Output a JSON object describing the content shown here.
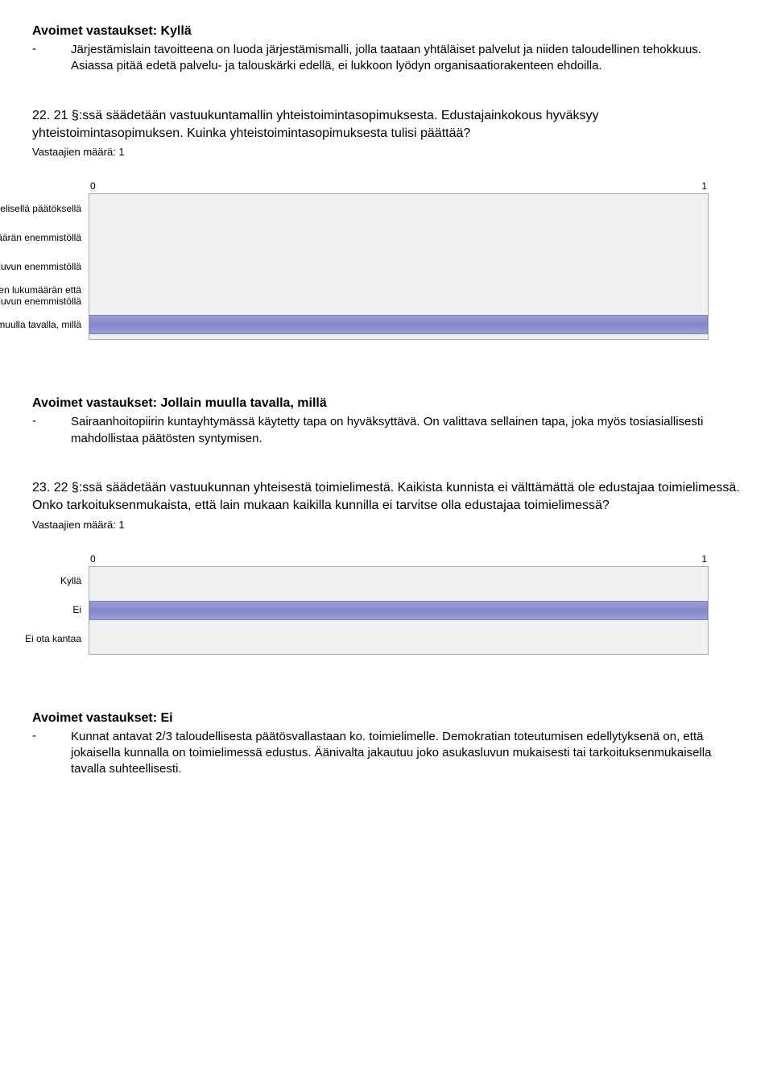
{
  "section1": {
    "heading": "Avoimet vastaukset: Kyllä",
    "dash": "-",
    "text": "Järjestämislain tavoitteena on luoda järjestämismalli, jolla taataan yhtäläiset palvelut ja niiden taloudellinen tehokkuus. Asiassa pitää edetä palvelu- ja talouskärki edellä, ei lukkoon lyödyn organisaatiorakenteen ehdoilla."
  },
  "q22": {
    "title": "22. 21 §:ssä säädetään vastuukuntamallin yhteistoimintasopimuksesta. Edustajainkokous hyväksyy yhteistoimintasopimuksen. Kuinka yhteistoimintasopimuksesta tulisi päättää?",
    "meta": "Vastaajien määrä: 1",
    "axis_min": "0",
    "axis_max": "1",
    "rows": [
      {
        "label": "Kuntien yksimielisellä päätöksellä",
        "value": 0
      },
      {
        "label": "Kuntien lukumäärän enemmistöllä",
        "value": 0
      },
      {
        "label": "Asukasluvun enemmistöllä",
        "value": 0
      },
      {
        "label": "Sekä kuntien lukumäärän että\nasukasluvun enemmistöllä",
        "value": 0
      },
      {
        "label": "Jollain muulla tavalla, millä",
        "value": 1
      }
    ],
    "chart": {
      "bar_color": "#8a90cc",
      "bg_color": "#f0f0f0",
      "border_color": "#aaaaaa",
      "max": 1
    }
  },
  "section2": {
    "heading": "Avoimet vastaukset: Jollain muulla tavalla, millä",
    "dash": "-",
    "text": "Sairaanhoitopiirin kuntayhtymässä käytetty tapa on hyväksyttävä. On valittava sellainen tapa, joka myös tosiasiallisesti mahdollistaa päätösten syntymisen."
  },
  "q23": {
    "title": "23. 22 §:ssä säädetään vastuukunnan yhteisestä toimielimestä. Kaikista kunnista ei välttämättä ole edustajaa toimielimessä. Onko tarkoituksenmukaista, että lain mukaan kaikilla kunnilla ei tarvitse olla edustajaa toimielimessä?",
    "meta": "Vastaajien määrä: 1",
    "axis_min": "0",
    "axis_max": "1",
    "rows": [
      {
        "label": "Kyllä",
        "value": 0
      },
      {
        "label": "Ei",
        "value": 1
      },
      {
        "label": "Ei ota kantaa",
        "value": 0
      }
    ],
    "chart": {
      "bar_color": "#8a90cc",
      "bg_color": "#f0f0f0",
      "border_color": "#aaaaaa",
      "max": 1
    }
  },
  "section3": {
    "heading": "Avoimet vastaukset: Ei",
    "dash": "-",
    "text": "Kunnat antavat 2/3 taloudellisesta päätösvallastaan ko. toimielimelle. Demokratian toteutumisen edellytyksenä on, että jokaisella kunnalla on toimielimessä edustus. Äänivalta jakautuu joko asukasluvun mukaisesti tai tarkoituksenmukaisella tavalla suhteellisesti."
  }
}
